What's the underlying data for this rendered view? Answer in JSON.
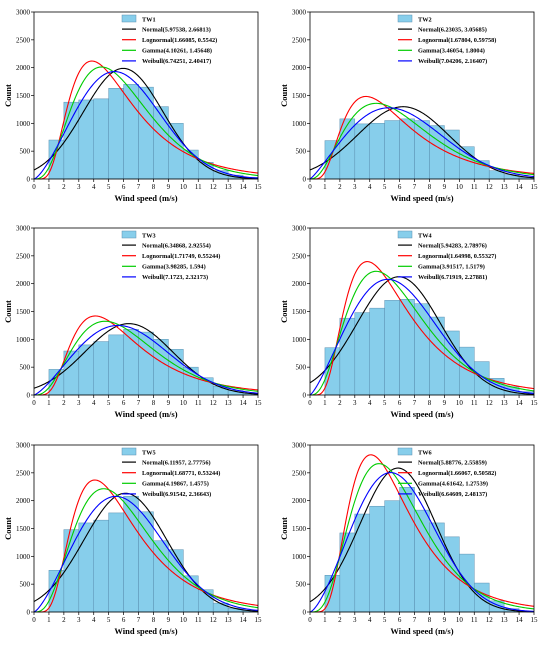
{
  "chart_data": [
    {
      "type": "bar+line",
      "title": "",
      "xlabel": "Wind speed (m/s)",
      "ylabel": "Count",
      "xlim": [
        0,
        15
      ],
      "ylim": [
        0,
        3000
      ],
      "xticks": [
        0,
        1,
        2,
        3,
        4,
        5,
        6,
        7,
        8,
        9,
        10,
        11,
        12,
        13,
        14,
        15
      ],
      "yticks": [
        0,
        500,
        1000,
        1500,
        2000,
        2500,
        3000
      ],
      "legend_position": "top-right",
      "bar_series_name": "TW1",
      "bin_width": 1,
      "bin_starts": [
        1,
        2,
        3,
        4,
        5,
        6,
        7,
        8,
        9,
        10,
        11,
        12,
        13,
        14
      ],
      "counts": [
        700,
        1380,
        1420,
        1440,
        1630,
        1700,
        1650,
        1300,
        1000,
        520,
        300,
        150,
        70,
        30
      ],
      "series": [
        {
          "name": "Normal(5.97538, 2.66813)",
          "dist": "normal",
          "params": [
            5.97538,
            2.66813
          ],
          "color": "#000000"
        },
        {
          "name": "Lognormal(1.66085, 0.5542)",
          "dist": "lognormal",
          "params": [
            1.66085,
            0.5542
          ],
          "color": "#ff0000"
        },
        {
          "name": "Gamma(4.10261, 1.45648)",
          "dist": "gamma",
          "params": [
            4.10261,
            1.45648
          ],
          "color": "#00cc00"
        },
        {
          "name": "Weibull(6.74251, 2.40417)",
          "dist": "weibull",
          "params": [
            6.74251,
            2.40417
          ],
          "color": "#0000ff"
        }
      ]
    },
    {
      "type": "bar+line",
      "title": "",
      "xlabel": "Wind speed (m/s)",
      "ylabel": "Count",
      "xlim": [
        0,
        15
      ],
      "ylim": [
        0,
        3000
      ],
      "xticks": [
        0,
        1,
        2,
        3,
        4,
        5,
        6,
        7,
        8,
        9,
        10,
        11,
        12,
        13,
        14,
        15
      ],
      "yticks": [
        0,
        500,
        1000,
        1500,
        2000,
        2500,
        3000
      ],
      "legend_position": "top-right",
      "bar_series_name": "TW2",
      "bin_width": 1,
      "bin_starts": [
        1,
        2,
        3,
        4,
        5,
        6,
        7,
        8,
        9,
        10,
        11,
        12,
        13,
        14
      ],
      "counts": [
        690,
        1080,
        990,
        1000,
        1050,
        1080,
        1050,
        960,
        880,
        580,
        330,
        150,
        80,
        30
      ],
      "series": [
        {
          "name": "Normal(6.23035, 3.05685)",
          "dist": "normal",
          "params": [
            6.23035,
            3.05685
          ],
          "color": "#000000"
        },
        {
          "name": "Lognormal(1.67804, 0.59758)",
          "dist": "lognormal",
          "params": [
            1.67804,
            0.59758
          ],
          "color": "#ff0000"
        },
        {
          "name": "Gamma(3.46054, 1.8004)",
          "dist": "gamma",
          "params": [
            3.46054,
            1.8004
          ],
          "color": "#00cc00"
        },
        {
          "name": "Weibull(7.04206, 2.16407)",
          "dist": "weibull",
          "params": [
            7.04206,
            2.16407
          ],
          "color": "#0000ff"
        }
      ]
    },
    {
      "type": "bar+line",
      "title": "",
      "xlabel": "Wind speed (m/s)",
      "ylabel": "Count",
      "xlim": [
        0,
        15
      ],
      "ylim": [
        0,
        3000
      ],
      "xticks": [
        0,
        1,
        2,
        3,
        4,
        5,
        6,
        7,
        8,
        9,
        10,
        11,
        12,
        13,
        14,
        15
      ],
      "yticks": [
        0,
        500,
        1000,
        1500,
        2000,
        2500,
        3000
      ],
      "legend_position": "top-right",
      "bar_series_name": "TW3",
      "bin_width": 1,
      "bin_starts": [
        1,
        2,
        3,
        4,
        5,
        6,
        7,
        8,
        9,
        10,
        11,
        12,
        13,
        14
      ],
      "counts": [
        460,
        790,
        900,
        960,
        1080,
        1180,
        1130,
        1000,
        820,
        500,
        310,
        160,
        80,
        30
      ],
      "series": [
        {
          "name": "Normal(6.34868, 2.92554)",
          "dist": "normal",
          "params": [
            6.34868,
            2.92554
          ],
          "color": "#000000"
        },
        {
          "name": "Lognormal(1.71749, 0.55244)",
          "dist": "lognormal",
          "params": [
            1.71749,
            0.55244
          ],
          "color": "#ff0000"
        },
        {
          "name": "Gamma(3.98285, 1.594)",
          "dist": "gamma",
          "params": [
            3.98285,
            1.594
          ],
          "color": "#00cc00"
        },
        {
          "name": "Weibull(7.1723, 2.32173)",
          "dist": "weibull",
          "params": [
            7.1723,
            2.32173
          ],
          "color": "#0000ff"
        }
      ]
    },
    {
      "type": "bar+line",
      "title": "",
      "xlabel": "Wind speed (m/s)",
      "ylabel": "Count",
      "xlim": [
        0,
        15
      ],
      "ylim": [
        0,
        3000
      ],
      "xticks": [
        0,
        1,
        2,
        3,
        4,
        5,
        6,
        7,
        8,
        9,
        10,
        11,
        12,
        13,
        14,
        15
      ],
      "yticks": [
        0,
        500,
        1000,
        1500,
        2000,
        2500,
        3000
      ],
      "legend_position": "top-right",
      "bar_series_name": "TW4",
      "bin_width": 1,
      "bin_starts": [
        1,
        2,
        3,
        4,
        5,
        6,
        7,
        8,
        9,
        10,
        11,
        12,
        13,
        14
      ],
      "counts": [
        850,
        1380,
        1480,
        1560,
        1700,
        1720,
        1640,
        1400,
        1150,
        860,
        600,
        300,
        150,
        60
      ],
      "series": [
        {
          "name": "Normal(5.94283, 2.78976)",
          "dist": "normal",
          "params": [
            5.94283,
            2.78976
          ],
          "color": "#000000"
        },
        {
          "name": "Lognormal(1.64998, 0.55327)",
          "dist": "lognormal",
          "params": [
            1.64998,
            0.55327
          ],
          "color": "#ff0000"
        },
        {
          "name": "Gamma(3.91517, 1.5179)",
          "dist": "gamma",
          "params": [
            3.91517,
            1.5179
          ],
          "color": "#00cc00"
        },
        {
          "name": "Weibull(6.71919, 2.27881)",
          "dist": "weibull",
          "params": [
            6.71919,
            2.27881
          ],
          "color": "#0000ff"
        }
      ]
    },
    {
      "type": "bar+line",
      "title": "",
      "xlabel": "Wind speed (m/s)",
      "ylabel": "Count",
      "xlim": [
        0,
        15
      ],
      "ylim": [
        0,
        3000
      ],
      "xticks": [
        0,
        1,
        2,
        3,
        4,
        5,
        6,
        7,
        8,
        9,
        10,
        11,
        12,
        13,
        14,
        15
      ],
      "yticks": [
        0,
        500,
        1000,
        1500,
        2000,
        2500,
        3000
      ],
      "legend_position": "top-right",
      "bar_series_name": "TW5",
      "bin_width": 1,
      "bin_starts": [
        1,
        2,
        3,
        4,
        5,
        6,
        7,
        8,
        9,
        10,
        11,
        12,
        13,
        14
      ],
      "counts": [
        750,
        1480,
        1600,
        1650,
        1780,
        2080,
        1800,
        1280,
        1120,
        650,
        400,
        160,
        70,
        30
      ],
      "series": [
        {
          "name": "Normal(6.11957, 2.77756)",
          "dist": "normal",
          "params": [
            6.11957,
            2.77756
          ],
          "color": "#000000"
        },
        {
          "name": "Lognormal(1.68771, 0.53244)",
          "dist": "lognormal",
          "params": [
            1.68771,
            0.53244
          ],
          "color": "#ff0000"
        },
        {
          "name": "Gamma(4.19867, 1.4575)",
          "dist": "gamma",
          "params": [
            4.19867,
            1.4575
          ],
          "color": "#00cc00"
        },
        {
          "name": "Weibull(6.91542, 2.36643)",
          "dist": "weibull",
          "params": [
            6.91542,
            2.36643
          ],
          "color": "#0000ff"
        }
      ]
    },
    {
      "type": "bar+line",
      "title": "",
      "xlabel": "Wind speed (m/s)",
      "ylabel": "Count",
      "xlim": [
        0,
        15
      ],
      "ylim": [
        0,
        3000
      ],
      "xticks": [
        0,
        1,
        2,
        3,
        4,
        5,
        6,
        7,
        8,
        9,
        10,
        11,
        12,
        13,
        14,
        15
      ],
      "yticks": [
        0,
        500,
        1000,
        1500,
        2000,
        2500,
        3000
      ],
      "legend_position": "top-right",
      "bar_series_name": "TW6",
      "bin_width": 1,
      "bin_starts": [
        1,
        2,
        3,
        4,
        5,
        6,
        7,
        8,
        9,
        10,
        11,
        12,
        13
      ],
      "counts": [
        660,
        1420,
        1760,
        1900,
        2000,
        2240,
        1830,
        1600,
        1350,
        1040,
        520,
        200,
        60
      ],
      "series": [
        {
          "name": "Normal(5.88776, 2.55859)",
          "dist": "normal",
          "params": [
            5.88776,
            2.55859
          ],
          "color": "#000000"
        },
        {
          "name": "Lognormal(1.66067, 0.50582)",
          "dist": "lognormal",
          "params": [
            1.66067,
            0.50582
          ],
          "color": "#ff0000"
        },
        {
          "name": "Gamma(4.61642, 1.27539)",
          "dist": "gamma",
          "params": [
            4.61642,
            1.27539
          ],
          "color": "#00cc00"
        },
        {
          "name": "Weibull(6.64609, 2.48137)",
          "dist": "weibull",
          "params": [
            6.64609,
            2.48137
          ],
          "color": "#0000ff"
        }
      ]
    }
  ],
  "style": {
    "bar_fill": "#87ceeb",
    "bar_stroke": "#5a8fb0"
  }
}
